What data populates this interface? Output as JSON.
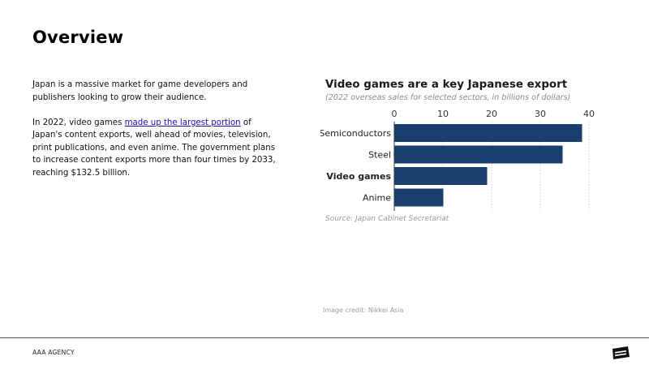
{
  "slide": {
    "title": "Overview",
    "paragraph1": "Japan is a massive market for game developers and publishers looking to grow their audience.",
    "paragraph2_before": "In 2022, video games ",
    "paragraph2_link": "made up the largest portion",
    "paragraph2_after": " of Japan's content exports, well ahead of movies, television, print publications, and even anime. The government plans to increase content exports more than four times by 2033, reaching $132.5 billion.",
    "image_credit": "Image credit: Nikkei Asia"
  },
  "footer": {
    "agency": "AAA AGENCY"
  },
  "chart_data": {
    "type": "bar",
    "orientation": "horizontal",
    "title": "Video games are a key Japanese export",
    "subtitle": "(2022 overseas sales for selected sectors, in billions of dollars)",
    "source": "Source: Japan Cabinet Secretariat",
    "categories": [
      "Semiconductors",
      "Steel",
      "Video games",
      "Anime"
    ],
    "values": [
      38.5,
      34.5,
      19,
      10
    ],
    "highlight": "Video games",
    "xticks": [
      0,
      10,
      20,
      30,
      40
    ],
    "xlim": [
      0,
      40
    ],
    "grid": true,
    "bar_color": "#1a3f6f"
  }
}
